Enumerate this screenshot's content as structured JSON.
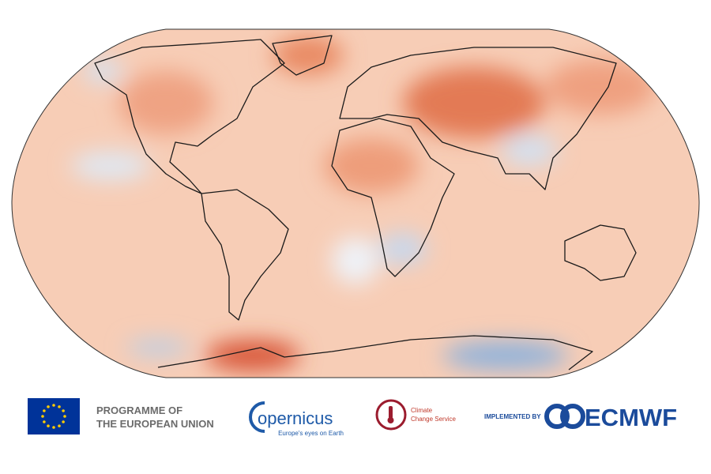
{
  "logos": {
    "eu": {
      "line1": "PROGRAMME OF",
      "line2": "THE EUROPEAN UNION"
    },
    "copernicus": {
      "name": "opernicus",
      "tagline": "Europe's eyes on Earth"
    },
    "climate": {
      "line1": "Climate",
      "line2": "Change Service"
    },
    "ecmwf": {
      "prefix": "IMPLEMENTED BY",
      "name": "ECMWF"
    }
  }
}
